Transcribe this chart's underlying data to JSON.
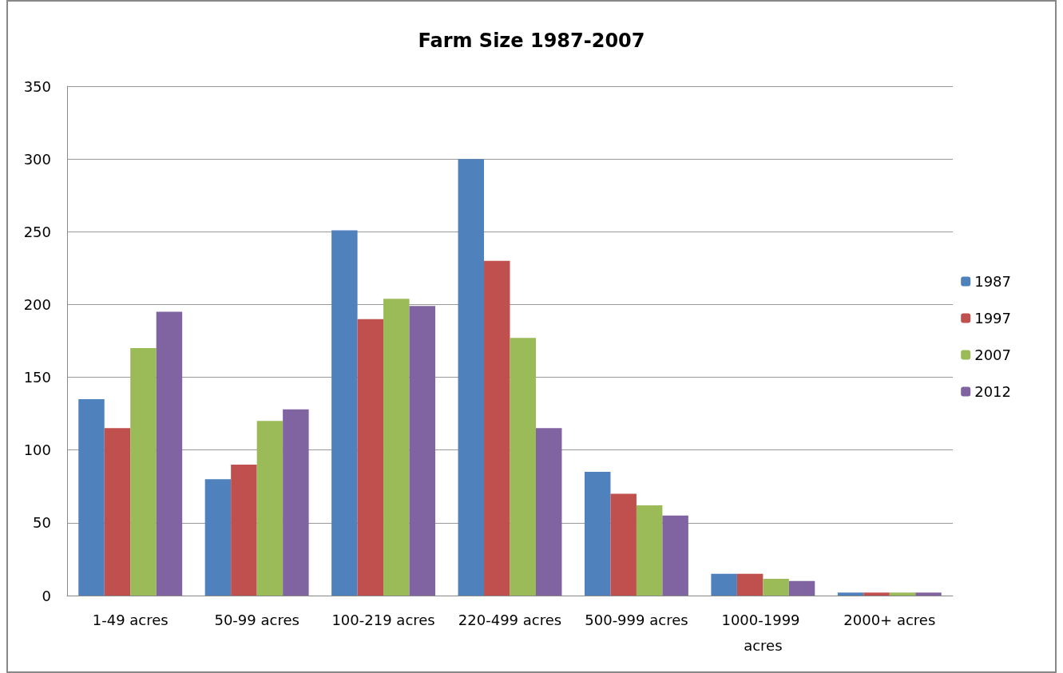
{
  "chart_data": {
    "type": "bar",
    "title": "Farm Size 1987-2007",
    "categories": [
      "1-49 acres",
      "50-99 acres",
      "100-219 acres",
      "220-499 acres",
      "500-999 acres",
      "1000-1999 acres",
      "2000+ acres"
    ],
    "series": [
      {
        "name": "1987",
        "color": "#4f81bd",
        "values": [
          135,
          80,
          251,
          300,
          85,
          15,
          2
        ]
      },
      {
        "name": "1997",
        "color": "#c0504d",
        "values": [
          115,
          90,
          190,
          230,
          70,
          15,
          2
        ]
      },
      {
        "name": "2007",
        "color": "#9bbb59",
        "values": [
          170,
          120,
          204,
          177,
          62,
          11.5,
          2
        ]
      },
      {
        "name": "2012",
        "color": "#8064a2",
        "values": [
          195,
          128,
          199,
          115,
          55,
          10,
          2
        ]
      }
    ],
    "ylim": [
      0,
      350
    ],
    "yticks": [
      0,
      50,
      100,
      150,
      200,
      250,
      300,
      350
    ],
    "grid": "y",
    "legend": "right"
  }
}
